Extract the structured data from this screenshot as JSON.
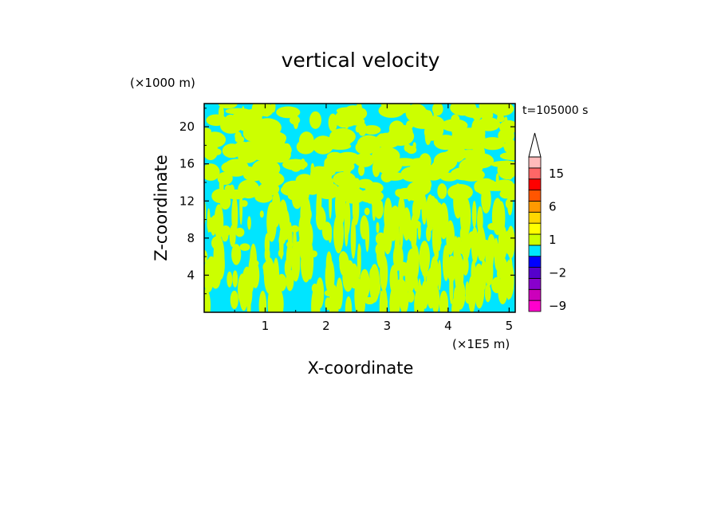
{
  "chart_data": {
    "type": "heatmap",
    "title": "vertical velocity",
    "xlabel": "X-coordinate",
    "ylabel": "Z-coordinate",
    "x_unit": "(×1E5 m)",
    "y_unit": "(×1000 m)",
    "time_label": "t=105000 s",
    "xlim": [
      0,
      5.1
    ],
    "ylim": [
      0,
      22.5
    ],
    "x_ticks": [
      1,
      2,
      3,
      4,
      5
    ],
    "y_ticks": [
      4,
      8,
      12,
      16,
      20
    ],
    "x_tick_labels": [
      "1",
      "2",
      "3",
      "4",
      "5"
    ],
    "y_tick_labels": [
      "4",
      "8",
      "12",
      "16",
      "20"
    ],
    "colorbar": {
      "levels": [
        -9,
        -6,
        -4,
        -2,
        -1,
        0,
        1,
        2,
        4,
        6,
        9,
        12,
        15,
        20
      ],
      "colors": [
        "#ff00cc",
        "#cc00bb",
        "#8800cc",
        "#5500cc",
        "#0000ff",
        "#00e5ff",
        "#ccff00",
        "#ffff00",
        "#ffd700",
        "#ff9900",
        "#ff5500",
        "#ff0000",
        "#ff6666",
        "#ffbbbb"
      ],
      "labels": [
        "15",
        "6",
        "1",
        "−2",
        "−9"
      ],
      "label_values": [
        15,
        6,
        1,
        -2,
        -9
      ],
      "extend": "max"
    },
    "field_colors": {
      "negative": "#00e5ff",
      "positive": "#ccff00"
    }
  }
}
